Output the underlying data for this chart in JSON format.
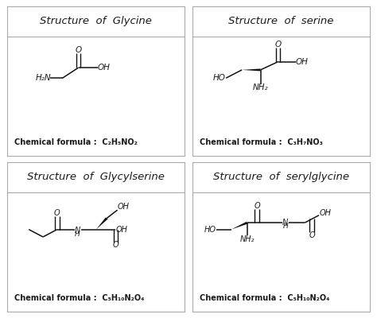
{
  "bg_color": "#ffffff",
  "border_color": "#999999",
  "text_color": "#1a1a1a",
  "titles": [
    "Structure  of  Glycine",
    "Structure  of  serine",
    "Structure  of  Glycylserine",
    "Structure  of  serylglycine"
  ],
  "formulas": [
    "Chemical formula :  C₂H₅NO₂",
    "Chemical formula :  C₃H₇NO₃",
    "Chemical formula :  C₅H₁₀N₂O₄",
    "Chemical formula :  C₅H₁₀N₂O₄"
  ],
  "title_fontsize": 9.5,
  "formula_fontsize": 7.0,
  "struct_fontsize": 7.0
}
